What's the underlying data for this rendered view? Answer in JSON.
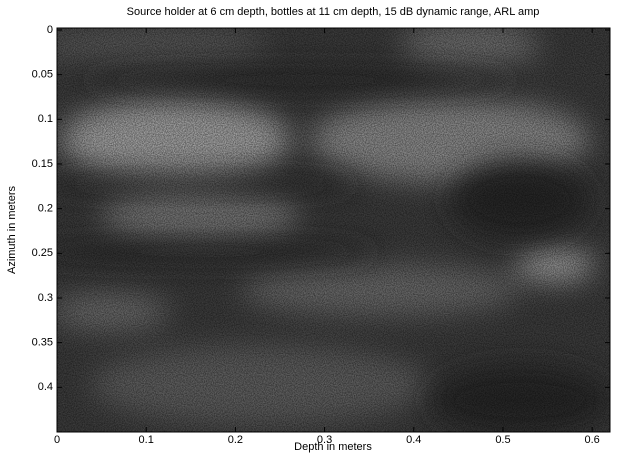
{
  "chart_data": {
    "type": "heatmap",
    "title": "Source holder at 6 cm depth, bottles at 11 cm depth, 15 dB dynamic range, ARL amp",
    "x_label": "Depth in meters",
    "y_label": "Azimuth in meters",
    "xlim": [
      0,
      0.62
    ],
    "xticks": [
      0,
      0.1,
      0.2,
      0.3,
      0.4,
      0.5,
      0.6
    ],
    "ylim": [
      0.45,
      0
    ],
    "yticks": [
      0,
      0.05,
      0.1,
      0.15,
      0.2,
      0.25,
      0.3,
      0.35,
      0.4
    ]
  }
}
